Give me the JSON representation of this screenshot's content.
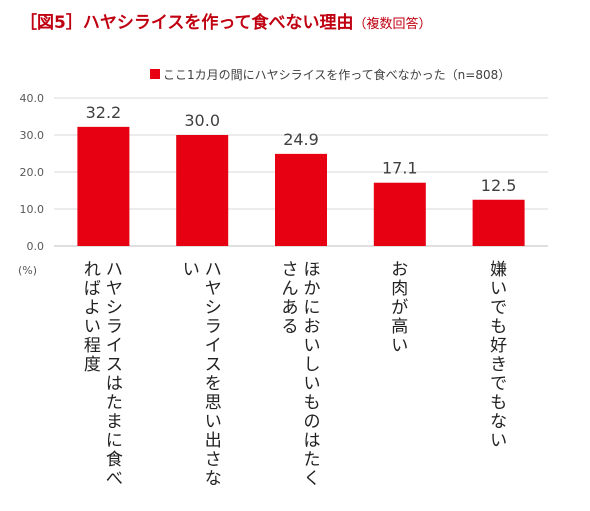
{
  "chart_data": {
    "type": "bar",
    "title": "［図5］ハヤシライスを作って食べない理由",
    "subtitle": "（複数回答）",
    "categories": [
      "ハヤシライスはたまに食べればよい程度",
      "ハヤシライスを思い出さない",
      "ほかにおいしいものはたくさんある",
      "お肉が高い",
      "嫌いでも好きでもない"
    ],
    "series": [
      {
        "name": "ここ1カ月の間にハヤシライスを作って食べなかった（n=808）",
        "values": [
          32.2,
          30.0,
          24.9,
          17.1,
          12.5
        ]
      }
    ],
    "value_labels": [
      "32.2",
      "30.0",
      "24.9",
      "17.1",
      "12.5"
    ],
    "y_ticks": [
      "40.0",
      "30.0",
      "20.0",
      "10.0",
      "0.0"
    ],
    "y_unit": "(%)",
    "ylim": [
      0,
      40
    ],
    "grid": true,
    "legend_position": "top-right",
    "bar_color": "#e60012",
    "title_color": "#c00010"
  }
}
